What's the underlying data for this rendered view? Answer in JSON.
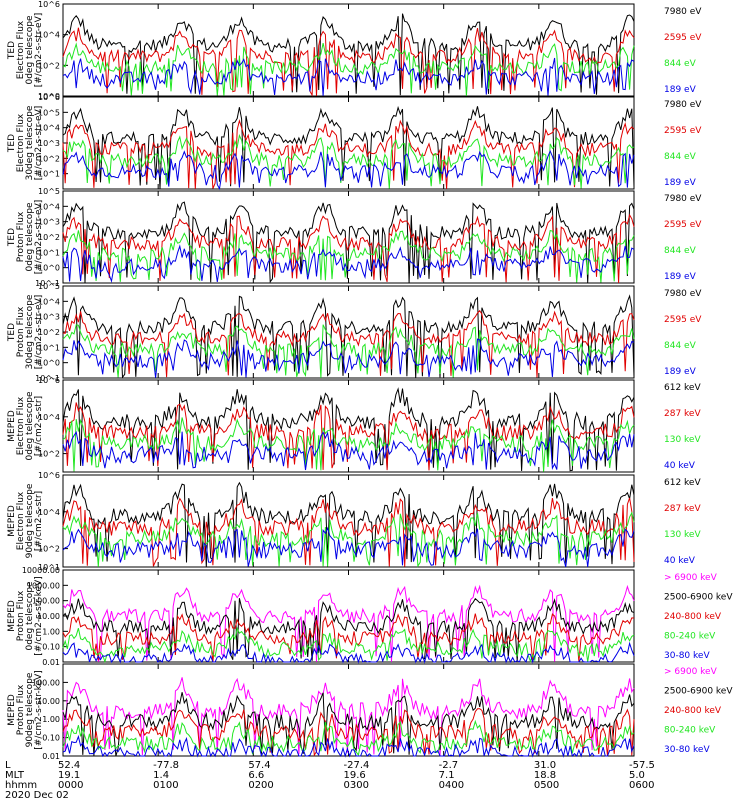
{
  "figure": {
    "date_label": "2020 Dec 02",
    "row_labels": [
      "L",
      "MLT",
      "hhmm"
    ],
    "x_ticks": [
      {
        "L": "52.4",
        "MLT": "19.1",
        "hhmm": "0000"
      },
      {
        "L": "-77.8",
        "MLT": "1.4",
        "hhmm": "0100"
      },
      {
        "L": "57.4",
        "MLT": "6.6",
        "hhmm": "0200"
      },
      {
        "L": "-27.4",
        "MLT": "19.6",
        "hhmm": "0300"
      },
      {
        "L": "-2.7",
        "MLT": "7.1",
        "hhmm": "0400"
      },
      {
        "L": "31.0",
        "MLT": "18.8",
        "hhmm": "0500"
      },
      {
        "L": "-57.5",
        "MLT": "5.0",
        "hhmm": "0600"
      }
    ],
    "colors": {
      "black": "#000000",
      "red": "#e00000",
      "green": "#22e622",
      "blue": "#0000e6",
      "magenta": "#ff00ff"
    }
  },
  "chart_data": [
    {
      "type": "line",
      "ylabel": [
        "TED",
        "Electron Flux",
        "0deg telescope",
        "[#/cm2-s-str-eV]"
      ],
      "ylim_exp": [
        0,
        6
      ],
      "yticks": [
        {
          "exp": 0,
          "label": "10^0"
        },
        {
          "exp": 2,
          "label": "10^2"
        },
        {
          "exp": 4,
          "label": "10^4"
        },
        {
          "exp": 6,
          "label": "10^6"
        }
      ],
      "xlim_hours": [
        0,
        6
      ],
      "series": [
        {
          "name": "7980 eV",
          "color": "black"
        },
        {
          "name": "2595 eV",
          "color": "red"
        },
        {
          "name": "844 eV",
          "color": "green"
        },
        {
          "name": "189 eV",
          "color": "blue"
        }
      ]
    },
    {
      "type": "line",
      "ylabel": [
        "TED",
        "Electron Flux",
        "30deg telescope",
        "[#/cm2-s-str-eV]"
      ],
      "ylim_exp": [
        0,
        6
      ],
      "yticks": [
        {
          "exp": 1,
          "label": "10^1"
        },
        {
          "exp": 2,
          "label": "10^2"
        },
        {
          "exp": 3,
          "label": "10^3"
        },
        {
          "exp": 4,
          "label": "10^4"
        },
        {
          "exp": 5,
          "label": "10^5"
        },
        {
          "exp": 6,
          "label": "10^6"
        }
      ],
      "xlim_hours": [
        0,
        6
      ],
      "series": [
        {
          "name": "7980 eV",
          "color": "black"
        },
        {
          "name": "2595 eV",
          "color": "red"
        },
        {
          "name": "844 eV",
          "color": "green"
        },
        {
          "name": "189 eV",
          "color": "blue"
        }
      ]
    },
    {
      "type": "line",
      "ylabel": [
        "TED",
        "Proton Flux",
        "0deg telescope",
        "[#/cm2-s-str-eV]"
      ],
      "ylim_exp": [
        -1,
        5
      ],
      "yticks": [
        {
          "exp": -1,
          "label": "10^-1"
        },
        {
          "exp": 0,
          "label": "10^0"
        },
        {
          "exp": 1,
          "label": "10^1"
        },
        {
          "exp": 2,
          "label": "10^2"
        },
        {
          "exp": 3,
          "label": "10^3"
        },
        {
          "exp": 4,
          "label": "10^4"
        },
        {
          "exp": 5,
          "label": "10^5"
        }
      ],
      "xlim_hours": [
        0,
        6
      ],
      "series": [
        {
          "name": "7980 eV",
          "color": "black"
        },
        {
          "name": "2595 eV",
          "color": "red"
        },
        {
          "name": "844 eV",
          "color": "green"
        },
        {
          "name": "189 eV",
          "color": "blue"
        }
      ]
    },
    {
      "type": "line",
      "ylabel": [
        "TED",
        "Proton Flux",
        "30deg telescope",
        "[#/cm2-s-str-eV]"
      ],
      "ylim_exp": [
        -1,
        5
      ],
      "yticks": [
        {
          "exp": -1,
          "label": "10^-1"
        },
        {
          "exp": 0,
          "label": "10^0"
        },
        {
          "exp": 1,
          "label": "10^1"
        },
        {
          "exp": 2,
          "label": "10^2"
        },
        {
          "exp": 3,
          "label": "10^3"
        },
        {
          "exp": 4,
          "label": "10^4"
        },
        {
          "exp": 5,
          "label": "10^5"
        }
      ],
      "xlim_hours": [
        0,
        6
      ],
      "series": [
        {
          "name": "7980 eV",
          "color": "black"
        },
        {
          "name": "2595 eV",
          "color": "red"
        },
        {
          "name": "844 eV",
          "color": "green"
        },
        {
          "name": "189 eV",
          "color": "blue"
        }
      ]
    },
    {
      "type": "line",
      "ylabel": [
        "MEPED",
        "Electron Flux",
        "0deg telescope",
        "[#/cm2-s-str]"
      ],
      "ylim_exp": [
        1,
        6
      ],
      "yticks": [
        {
          "exp": 2,
          "label": "10^2"
        },
        {
          "exp": 4,
          "label": "10^4"
        },
        {
          "exp": 6,
          "label": "10^6"
        }
      ],
      "xlim_hours": [
        0,
        6
      ],
      "series": [
        {
          "name": "612 keV",
          "color": "black"
        },
        {
          "name": "287 keV",
          "color": "red"
        },
        {
          "name": "130 keV",
          "color": "green"
        },
        {
          "name": "40 keV",
          "color": "blue"
        }
      ]
    },
    {
      "type": "line",
      "ylabel": [
        "MEPED",
        "Electron Flux",
        "90deg telescope",
        "[#/cm2-s-str]"
      ],
      "ylim_exp": [
        1,
        6
      ],
      "yticks": [
        {
          "exp": 1,
          "label": "10^1"
        },
        {
          "exp": 2,
          "label": "10^2"
        },
        {
          "exp": 4,
          "label": "10^4"
        },
        {
          "exp": 6,
          "label": "10^6"
        }
      ],
      "xlim_hours": [
        0,
        6
      ],
      "series": [
        {
          "name": "612 keV",
          "color": "black"
        },
        {
          "name": "287 keV",
          "color": "red"
        },
        {
          "name": "130 keV",
          "color": "green"
        },
        {
          "name": "40 keV",
          "color": "blue"
        }
      ]
    },
    {
      "type": "line",
      "ylabel": [
        "MEPED",
        "Proton Flux",
        "0deg telescope",
        "[#/cm2-s-str-keV]"
      ],
      "ylim_exp": [
        -2,
        4
      ],
      "yticks": [
        {
          "exp": -2,
          "label": "0.01"
        },
        {
          "exp": -1,
          "label": "0.10"
        },
        {
          "exp": 0,
          "label": "1.00"
        },
        {
          "exp": 1,
          "label": "10.00"
        },
        {
          "exp": 2,
          "label": "100.00"
        },
        {
          "exp": 3,
          "label": "1000.00"
        },
        {
          "exp": 4,
          "label": "10000.00"
        }
      ],
      "xlim_hours": [
        0,
        6
      ],
      "series": [
        {
          "name": "> 6900 keV",
          "color": "magenta"
        },
        {
          "name": "2500-6900 keV",
          "color": "black"
        },
        {
          "name": "240-800 keV",
          "color": "red"
        },
        {
          "name": "80-240 keV",
          "color": "green"
        },
        {
          "name": "30-80 keV",
          "color": "blue"
        }
      ]
    },
    {
      "type": "line",
      "ylabel": [
        "MEPED",
        "Proton Flux",
        "90deg telescope",
        "[#/cm2-s-str-keV]"
      ],
      "ylim_exp": [
        -2,
        3
      ],
      "yticks": [
        {
          "exp": -2,
          "label": "0.01"
        },
        {
          "exp": -1,
          "label": "0.10"
        },
        {
          "exp": 0,
          "label": "1.00"
        },
        {
          "exp": 1,
          "label": "10.00"
        },
        {
          "exp": 2,
          "label": "100.00"
        }
      ],
      "xlim_hours": [
        0,
        6
      ],
      "series": [
        {
          "name": "> 6900 keV",
          "color": "magenta"
        },
        {
          "name": "2500-6900 keV",
          "color": "black"
        },
        {
          "name": "240-800 keV",
          "color": "red"
        },
        {
          "name": "80-240 keV",
          "color": "green"
        },
        {
          "name": "30-80 keV",
          "color": "blue"
        }
      ]
    }
  ]
}
